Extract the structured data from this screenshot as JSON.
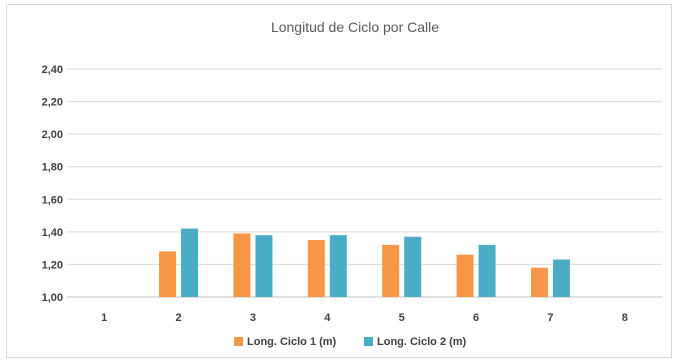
{
  "chart_data": {
    "type": "bar",
    "title": "Longitud de Ciclo por Calle",
    "xlabel": "",
    "ylabel": "",
    "categories": [
      "1",
      "2",
      "3",
      "4",
      "5",
      "6",
      "7",
      "8"
    ],
    "series": [
      {
        "name": "Long. Ciclo 1 (m)",
        "color": "#F79646",
        "values": [
          null,
          1.28,
          1.39,
          1.35,
          1.32,
          1.26,
          1.18,
          null
        ]
      },
      {
        "name": "Long. Ciclo 2 (m)",
        "color": "#4BACC6",
        "values": [
          null,
          1.42,
          1.38,
          1.38,
          1.37,
          1.32,
          1.23,
          null
        ]
      }
    ],
    "ylim": [
      1.0,
      2.4
    ],
    "yticks": [
      "1,00",
      "1,20",
      "1,40",
      "1,60",
      "1,80",
      "2,00",
      "2,20",
      "2,40"
    ],
    "ytick_values": [
      1.0,
      1.2,
      1.4,
      1.6,
      1.8,
      2.0,
      2.2,
      2.4
    ],
    "grid": true,
    "legend_position": "bottom"
  }
}
